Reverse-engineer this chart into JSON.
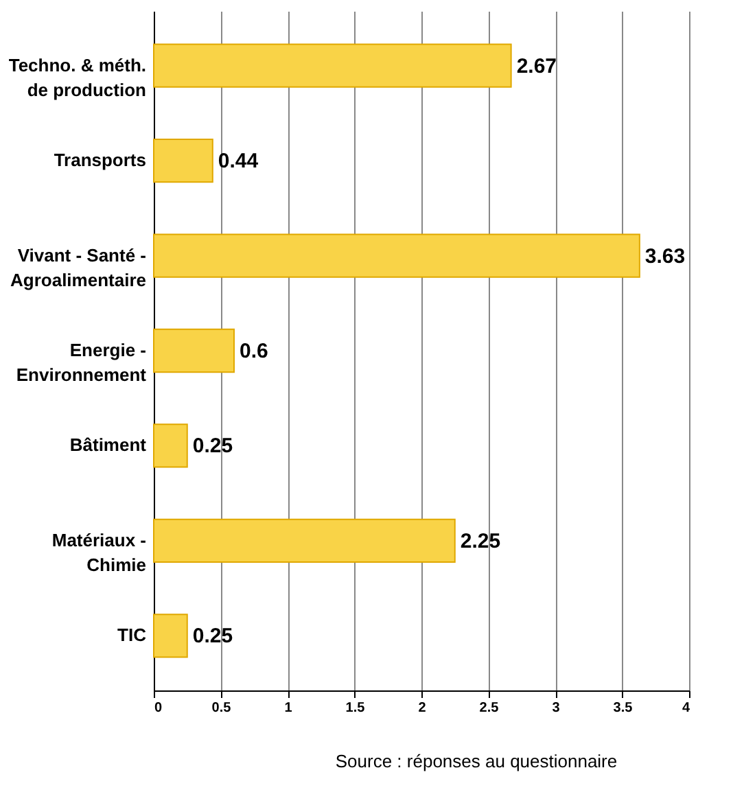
{
  "chart_data": {
    "type": "bar",
    "orientation": "horizontal",
    "categories": [
      "Techno. & méth.\nde production",
      "Transports",
      "Vivant - Santé -\nAgroalimentaire",
      "Energie -\nEnvironnement",
      "Bâtiment",
      "Matériaux -\nChimie",
      "TIC"
    ],
    "values": [
      2.67,
      0.44,
      3.63,
      0.6,
      0.25,
      2.25,
      0.25
    ],
    "color": "#f9d347",
    "xlim": [
      0,
      4
    ],
    "xticks": [
      0,
      0.5,
      1,
      1.5,
      2,
      2.5,
      3,
      3.5,
      4
    ],
    "grid": "x",
    "data_labels": true,
    "annotations": [
      "Source : réponses au questionnaire"
    ]
  }
}
